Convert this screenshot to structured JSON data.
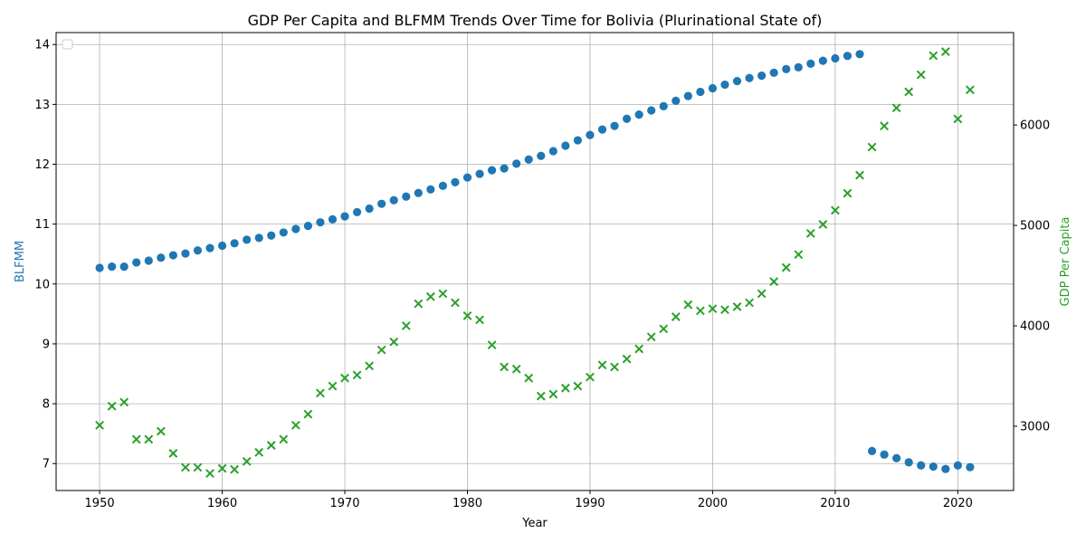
{
  "chart_data": {
    "type": "scatter",
    "title": "GDP Per Capita and BLFMM Trends Over Time for Bolivia (Plurinational State of)",
    "xlabel": "Year",
    "ylabel_left": "BLFMM",
    "ylabel_right": "GDP Per Capita",
    "xlim": [
      1946.45,
      2024.55
    ],
    "ylim_left": [
      6.55,
      14.2
    ],
    "ylim_right": [
      2360,
      6920
    ],
    "x_ticks": [
      1950,
      1960,
      1970,
      1980,
      1990,
      2000,
      2010,
      2020
    ],
    "y_ticks_left": [
      7,
      8,
      9,
      10,
      11,
      12,
      13,
      14
    ],
    "y_ticks_right": [
      3000,
      4000,
      5000,
      6000
    ],
    "grid": true,
    "legend": "top-left (empty)",
    "colors": {
      "blfmm": "#1f77b4",
      "gdp": "#2ca02c",
      "grid": "#b0b0b0"
    },
    "series": [
      {
        "name": "BLFMM",
        "axis": "left",
        "marker": "circle",
        "x": [
          1950,
          1951,
          1952,
          1953,
          1954,
          1955,
          1956,
          1957,
          1958,
          1959,
          1960,
          1961,
          1962,
          1963,
          1964,
          1965,
          1966,
          1967,
          1968,
          1969,
          1970,
          1971,
          1972,
          1973,
          1974,
          1975,
          1976,
          1977,
          1978,
          1979,
          1980,
          1981,
          1982,
          1983,
          1984,
          1985,
          1986,
          1987,
          1988,
          1989,
          1990,
          1991,
          1992,
          1993,
          1994,
          1995,
          1996,
          1997,
          1998,
          1999,
          2000,
          2001,
          2002,
          2003,
          2004,
          2005,
          2006,
          2007,
          2008,
          2009,
          2010,
          2011,
          2012,
          2013,
          2014,
          2015,
          2016,
          2017,
          2018,
          2019,
          2020,
          2021
        ],
        "y": [
          10.27,
          10.29,
          10.29,
          10.36,
          10.39,
          10.44,
          10.48,
          10.51,
          10.56,
          10.6,
          10.64,
          10.68,
          10.74,
          10.77,
          10.81,
          10.86,
          10.92,
          10.97,
          11.03,
          11.08,
          11.13,
          11.2,
          11.26,
          11.34,
          11.4,
          11.46,
          11.52,
          11.58,
          11.64,
          11.7,
          11.78,
          11.84,
          11.9,
          11.93,
          12.01,
          12.08,
          12.14,
          12.22,
          12.31,
          12.4,
          12.49,
          12.58,
          12.64,
          12.76,
          12.83,
          12.9,
          12.97,
          13.06,
          13.14,
          13.21,
          13.27,
          13.33,
          13.39,
          13.44,
          13.48,
          13.53,
          13.59,
          13.62,
          13.68,
          13.73,
          13.77,
          13.81,
          13.84,
          7.21,
          7.15,
          7.09,
          7.02,
          6.97,
          6.95,
          6.91,
          6.97,
          6.94
        ]
      },
      {
        "name": "GDP Per Capita",
        "axis": "right",
        "marker": "x",
        "x": [
          1950,
          1951,
          1952,
          1953,
          1954,
          1955,
          1956,
          1957,
          1958,
          1959,
          1960,
          1961,
          1962,
          1963,
          1964,
          1965,
          1966,
          1967,
          1968,
          1969,
          1970,
          1971,
          1972,
          1973,
          1974,
          1975,
          1976,
          1977,
          1978,
          1979,
          1980,
          1981,
          1982,
          1983,
          1984,
          1985,
          1986,
          1987,
          1988,
          1989,
          1990,
          1991,
          1992,
          1993,
          1994,
          1995,
          1996,
          1997,
          1998,
          1999,
          2000,
          2001,
          2002,
          2003,
          2004,
          2005,
          2006,
          2007,
          2008,
          2009,
          2010,
          2011,
          2012,
          2013,
          2014,
          2015,
          2016,
          2017,
          2018,
          2019,
          2020,
          2021
        ],
        "y": [
          3010,
          3200,
          3240,
          2870,
          2870,
          2950,
          2730,
          2590,
          2590,
          2530,
          2580,
          2570,
          2650,
          2740,
          2810,
          2870,
          3010,
          3120,
          3330,
          3400,
          3480,
          3510,
          3600,
          3760,
          3840,
          4000,
          4220,
          4290,
          4320,
          4230,
          4100,
          4060,
          3810,
          3590,
          3570,
          3480,
          3300,
          3320,
          3380,
          3400,
          3490,
          3610,
          3590,
          3670,
          3770,
          3890,
          3970,
          4090,
          4210,
          4150,
          4170,
          4160,
          4190,
          4230,
          4320,
          4440,
          4580,
          4710,
          4920,
          5010,
          5150,
          5320,
          5500,
          5780,
          5990,
          6170,
          6330,
          6500,
          6690,
          6730,
          6060,
          6350
        ]
      }
    ]
  }
}
